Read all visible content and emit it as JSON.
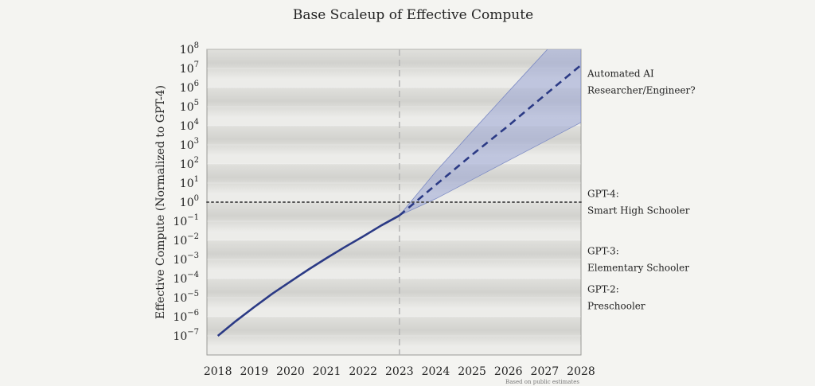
{
  "chart_data": {
    "type": "line",
    "title": "Base Scaleup of Effective Compute",
    "ylabel": "Effective Compute (Normalized to GPT-4)",
    "xlabel": "",
    "y_scale": "log10",
    "ylim": [
      1e-08,
      100000000.0
    ],
    "xlim": [
      2017.7,
      2028
    ],
    "x_ticks": [
      "2018",
      "2019",
      "2020",
      "2021",
      "2022",
      "2023",
      "2024",
      "2025",
      "2026",
      "2027",
      "2028"
    ],
    "y_ticks": [
      {
        "base": "10",
        "exp": "8"
      },
      {
        "base": "10",
        "exp": "7"
      },
      {
        "base": "10",
        "exp": "6"
      },
      {
        "base": "10",
        "exp": "5"
      },
      {
        "base": "10",
        "exp": "4"
      },
      {
        "base": "10",
        "exp": "3"
      },
      {
        "base": "10",
        "exp": "2"
      },
      {
        "base": "10",
        "exp": "1"
      },
      {
        "base": "10",
        "exp": "0"
      },
      {
        "base": "10",
        "exp": "−1"
      },
      {
        "base": "10",
        "exp": "−2"
      },
      {
        "base": "10",
        "exp": "−3"
      },
      {
        "base": "10",
        "exp": "−4"
      },
      {
        "base": "10",
        "exp": "−5"
      },
      {
        "base": "10",
        "exp": "−6"
      },
      {
        "base": "10",
        "exp": "−7"
      }
    ],
    "series": [
      {
        "style": "solid",
        "x": [
          2018,
          2018.5,
          2019,
          2019.5,
          2020,
          2020.5,
          2021,
          2021.5,
          2022,
          2022.5,
          2023
        ],
        "y": [
          1e-07,
          6e-07,
          3.2e-06,
          1.6e-05,
          7e-05,
          0.0003,
          0.0012,
          0.0045,
          0.016,
          0.06,
          0.2
        ]
      },
      {
        "style": "dashed",
        "x": [
          2023,
          2024,
          2025,
          2026,
          2027,
          2028
        ],
        "y": [
          0.2,
          8,
          300,
          10000.0,
          400000.0,
          15000000.0
        ]
      }
    ],
    "band": {
      "x": [
        2023,
        2024,
        2025,
        2026,
        2027,
        2028
      ],
      "lower": [
        0.2,
        1.5,
        15,
        150,
        1500,
        15000
      ],
      "upper": [
        0.2,
        40,
        5000,
        600000.0,
        70000000.0,
        8000000000.0
      ]
    },
    "reference_line": {
      "y": 1,
      "style": "dotted"
    },
    "marker_year": 2023,
    "annotations": [
      {
        "lines": [
          "Automated AI",
          "Researcher/Engineer?"
        ],
        "y": 2000000.0
      },
      {
        "lines": [
          "GPT-4:",
          "Smart High Schooler"
        ],
        "y": 1
      },
      {
        "lines": [
          "GPT-3:",
          "Elementary Schooler"
        ],
        "y": 0.001
      },
      {
        "lines": [
          "GPT-2:",
          "Preschooler"
        ],
        "y": 1e-05
      }
    ],
    "source_note": "Based on public estimates",
    "colors": {
      "line": "#2b3a85",
      "band": "#9aa6d6",
      "reference": "#555555",
      "marker": "#b8b8b8"
    },
    "grid": true
  }
}
